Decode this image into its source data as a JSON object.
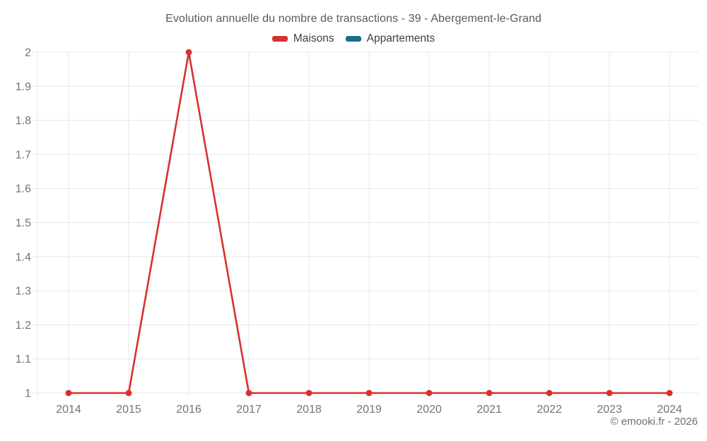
{
  "chart_data": {
    "type": "line",
    "title": "Evolution annuelle du nombre de transactions - 39 - Abergement-le-Grand",
    "categories": [
      "2014",
      "2015",
      "2016",
      "2017",
      "2018",
      "2019",
      "2020",
      "2021",
      "2022",
      "2023",
      "2024"
    ],
    "series": [
      {
        "name": "Maisons",
        "color": "#d8312e",
        "values": [
          1,
          1,
          2,
          1,
          1,
          1,
          1,
          1,
          1,
          1,
          1
        ]
      },
      {
        "name": "Appartements",
        "color": "#1a6d90",
        "values": []
      }
    ],
    "ylim": [
      1,
      2
    ],
    "ytick_step": 0.1,
    "ytick_labels": [
      "1",
      "1.1",
      "1.2",
      "1.3",
      "1.4",
      "1.5",
      "1.6",
      "1.7",
      "1.8",
      "1.9",
      "2"
    ],
    "grid": true,
    "grid_color": "#e7e7e7",
    "axis_label_color": "#737373",
    "legend_position": "top",
    "marker_radius": 4.4,
    "line_width": 2.6
  },
  "footer": {
    "copyright": "© emooki.fr - 2026"
  }
}
